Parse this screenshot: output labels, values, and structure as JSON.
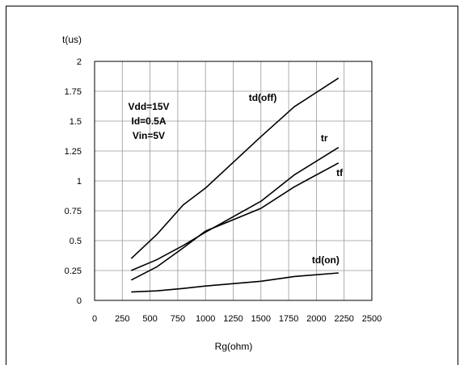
{
  "chart_data": {
    "type": "line",
    "title": "",
    "xlabel": "Rg(ohm)",
    "ylabel": "t(us)",
    "xlim": [
      0,
      2500
    ],
    "ylim": [
      0,
      2
    ],
    "xticks": [
      0,
      250,
      500,
      750,
      1000,
      1250,
      1500,
      1750,
      2000,
      2250,
      2500
    ],
    "yticks": [
      0,
      0.25,
      0.5,
      0.75,
      1,
      1.25,
      1.5,
      1.75,
      2
    ],
    "grid": true,
    "condition_lines": [
      "Vdd=15V",
      "Id=0.5A",
      "Vin=5V"
    ],
    "series": [
      {
        "name": "td(off)",
        "x": [
          330,
          560,
          800,
          1000,
          1500,
          1800,
          2200
        ],
        "y": [
          0.35,
          0.55,
          0.8,
          0.94,
          1.37,
          1.62,
          1.86
        ]
      },
      {
        "name": "tr",
        "x": [
          330,
          560,
          800,
          1000,
          1500,
          1800,
          2200
        ],
        "y": [
          0.25,
          0.34,
          0.46,
          0.57,
          0.83,
          1.05,
          1.28
        ]
      },
      {
        "name": "tf",
        "x": [
          330,
          560,
          800,
          1000,
          1500,
          1800,
          2200
        ],
        "y": [
          0.17,
          0.28,
          0.44,
          0.58,
          0.77,
          0.95,
          1.15
        ]
      },
      {
        "name": "td(on)",
        "x": [
          330,
          560,
          800,
          1000,
          1500,
          1800,
          2200
        ],
        "y": [
          0.07,
          0.08,
          0.1,
          0.12,
          0.16,
          0.2,
          0.23
        ]
      }
    ],
    "line_color": "#000000",
    "grid_color": "#999999"
  }
}
